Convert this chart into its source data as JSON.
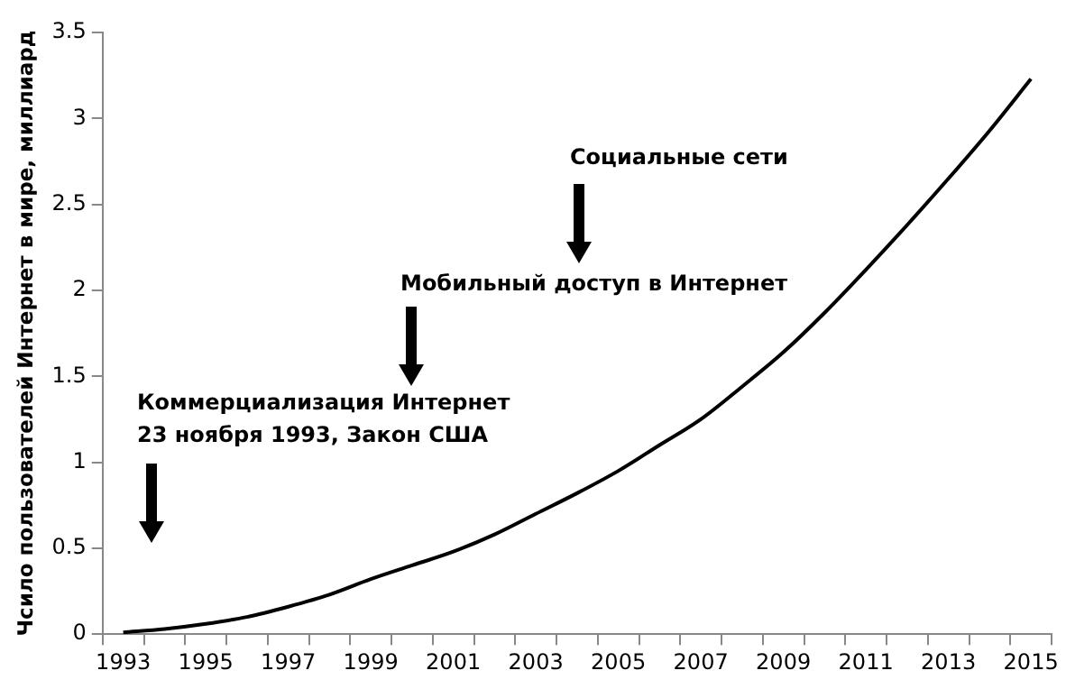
{
  "chart_data": {
    "type": "line",
    "ylabel": "Чсило пользователей Интернет в мире, миллиард",
    "categories": [
      "1993",
      null,
      "1995",
      null,
      "1997",
      null,
      "1999",
      null,
      "2001",
      null,
      "2003",
      null,
      "2005",
      null,
      "2007",
      null,
      "2009",
      null,
      "2011",
      null,
      "2013",
      null,
      "2015"
    ],
    "series": [
      {
        "color": "#000000",
        "values": [
          0.01,
          0.03,
          0.06,
          0.1,
          0.16,
          0.23,
          0.32,
          0.4,
          0.48,
          0.58,
          0.7,
          0.82,
          0.95,
          1.1,
          1.25,
          1.44,
          1.64,
          1.87,
          2.12,
          2.38,
          2.65,
          2.93,
          3.23
        ]
      }
    ],
    "ylim": [
      0,
      3.5
    ],
    "yticks": [
      0,
      0.5,
      1,
      1.5,
      2,
      2.5,
      3,
      3.5
    ],
    "grid": false,
    "legend": false,
    "marker": "none",
    "line_style": "solid",
    "annotations": [
      "Коммерциализация Интернет\n23 ноября 1993, Закон США",
      "Мобильный доступ в Интернет",
      "Социальные сети"
    ]
  }
}
